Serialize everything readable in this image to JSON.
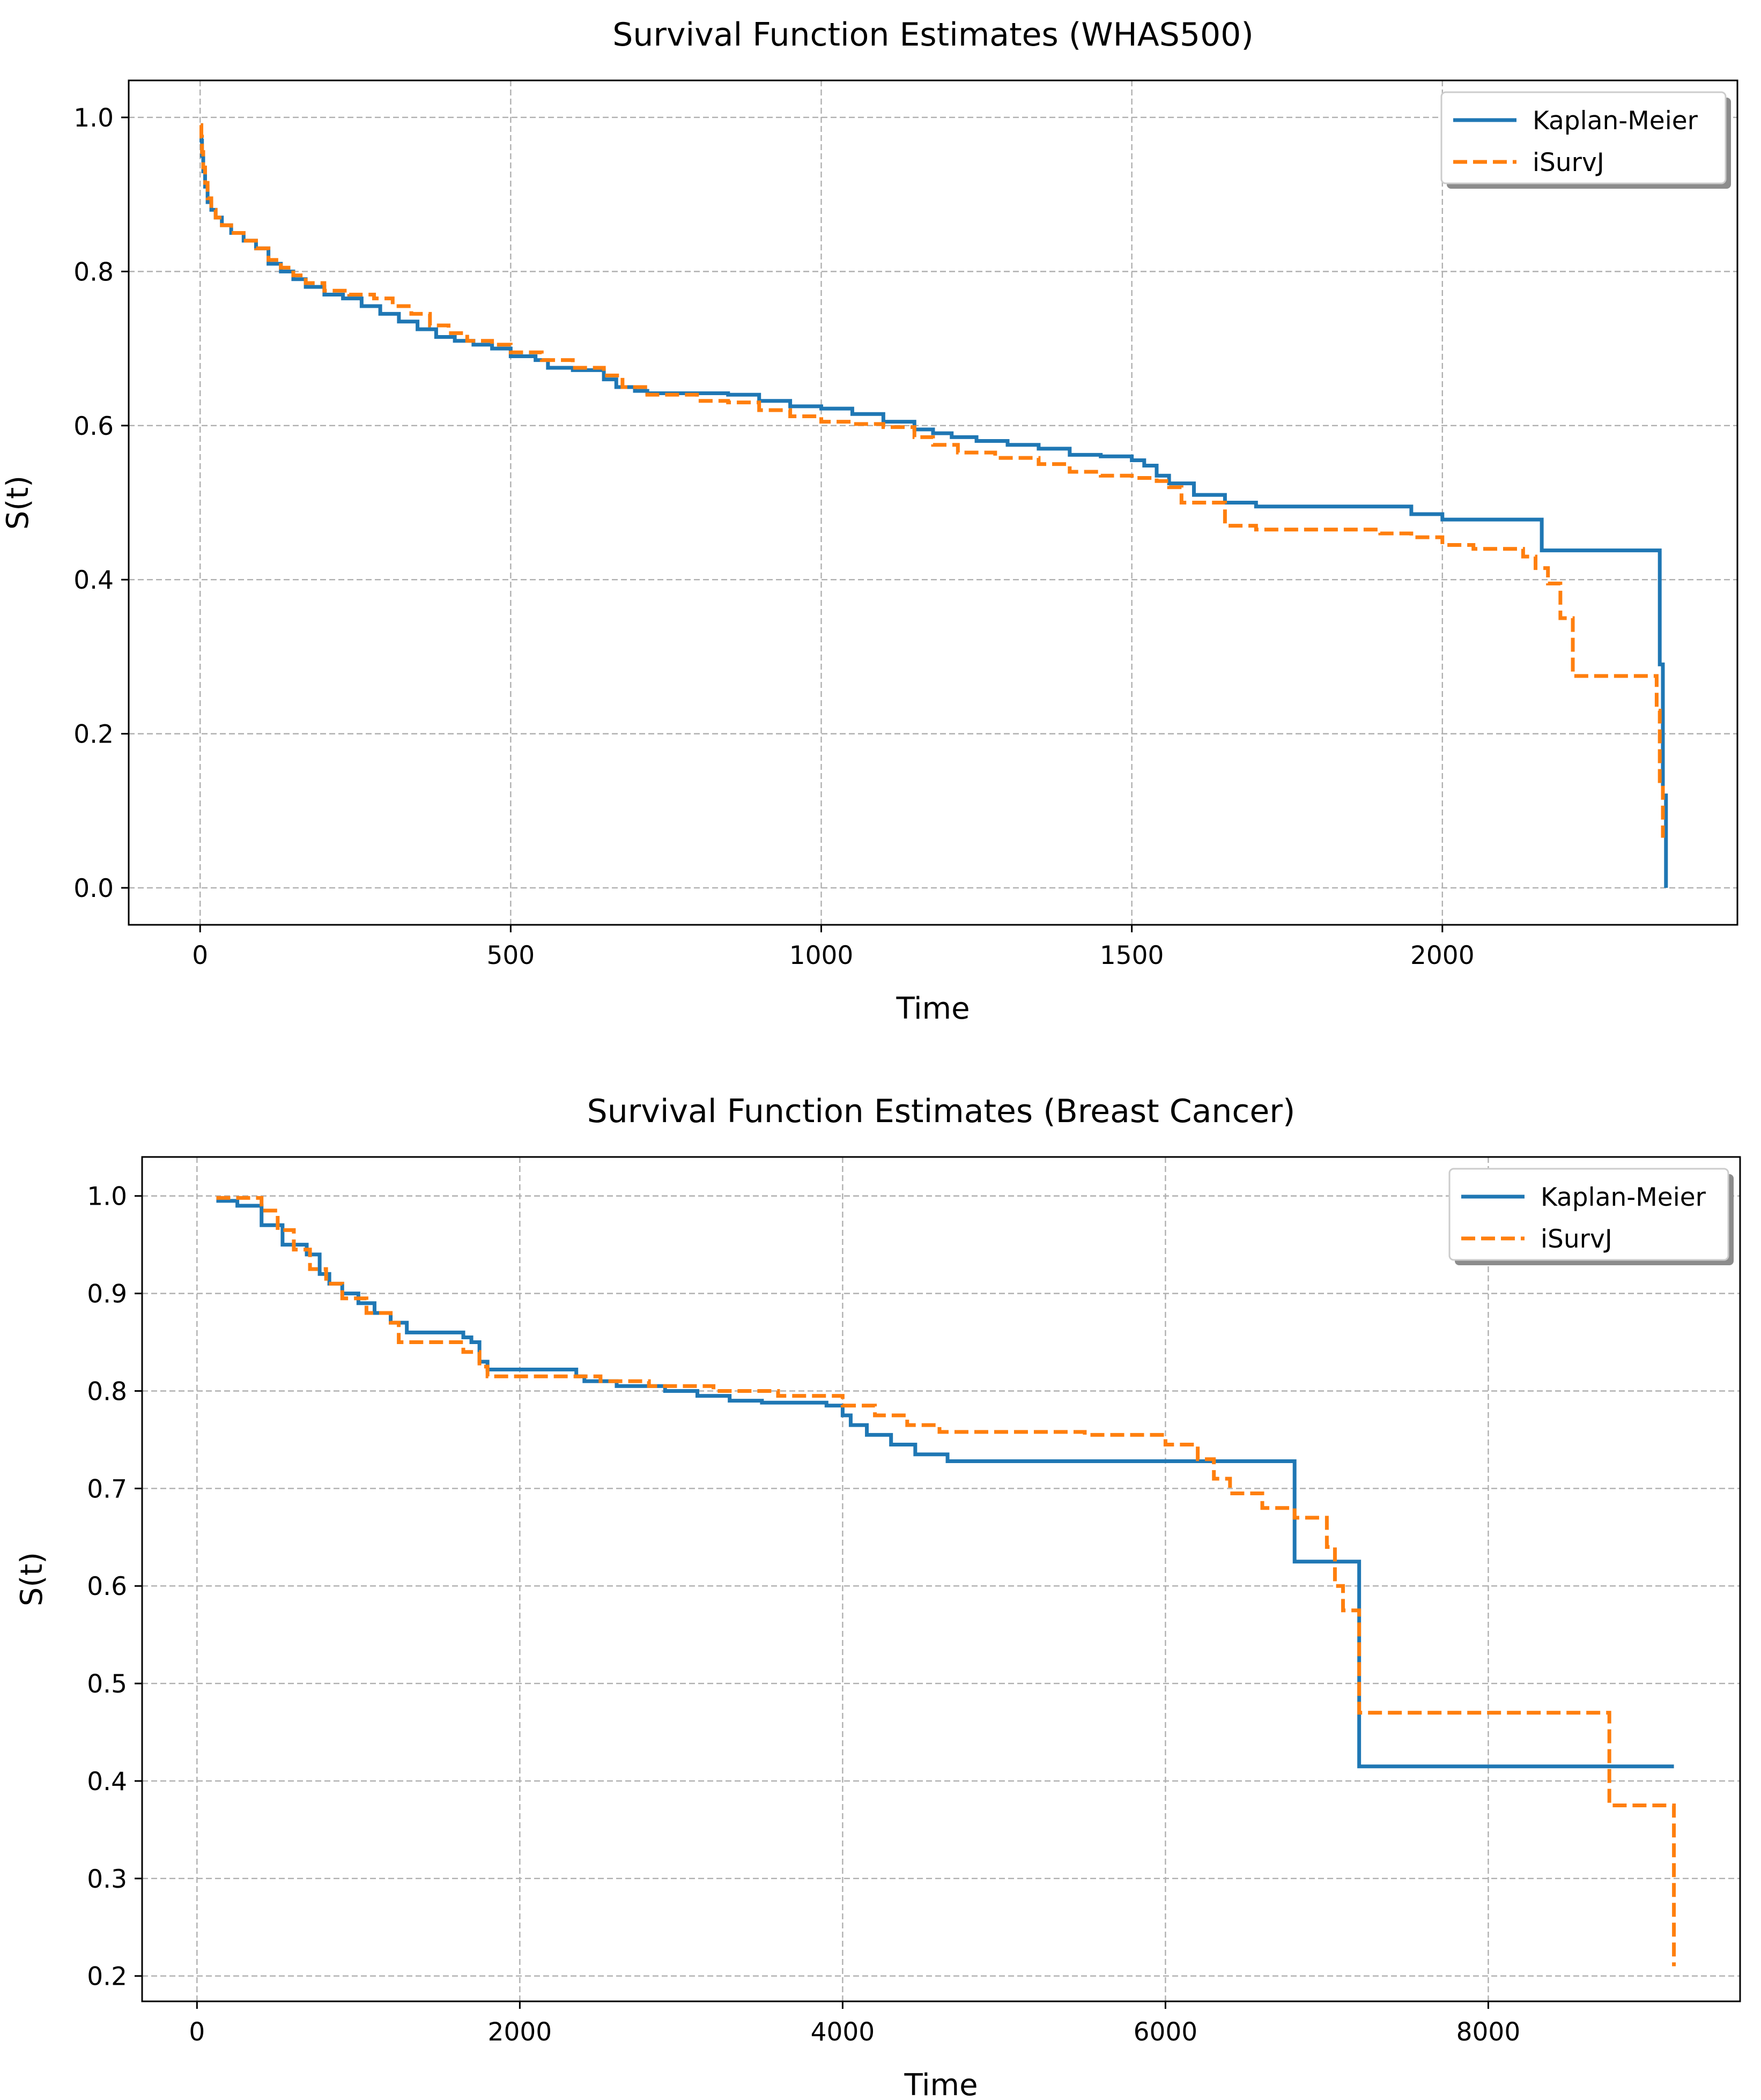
{
  "colors": {
    "kaplan_meier": "#1f77b4",
    "isurvj": "#ff7f0e",
    "grid": "#b0b0b0",
    "axes": "#000000",
    "text": "#000000"
  },
  "chart_data": [
    {
      "type": "line",
      "title": "Survival Function Estimates (WHAS500)",
      "xlabel": "Time",
      "ylabel": "S(t)",
      "xlim": [
        -115,
        2475
      ],
      "ylim": [
        -0.048,
        1.048
      ],
      "xticks": [
        0,
        500,
        1000,
        1500,
        2000
      ],
      "yticks": [
        0.0,
        0.2,
        0.4,
        0.6,
        0.8,
        1.0
      ],
      "xtick_labels": [
        "0",
        "500",
        "1000",
        "1500",
        "2000"
      ],
      "ytick_labels": [
        "0.0",
        "0.2",
        "0.4",
        "0.6",
        "0.8",
        "1.0"
      ],
      "grid": true,
      "step": true,
      "legend": {
        "position": "upper-right",
        "entries": [
          "Kaplan-Meier",
          "iSurvJ"
        ]
      },
      "series": [
        {
          "name": "Kaplan-Meier",
          "style": "solid",
          "color": "#1f77b4",
          "x": [
            1,
            2,
            3,
            5,
            8,
            12,
            18,
            25,
            35,
            50,
            70,
            90,
            110,
            130,
            150,
            170,
            200,
            230,
            260,
            290,
            320,
            350,
            380,
            410,
            440,
            470,
            500,
            540,
            560,
            600,
            650,
            670,
            700,
            720,
            800,
            850,
            900,
            950,
            1000,
            1050,
            1100,
            1150,
            1180,
            1210,
            1250,
            1300,
            1350,
            1400,
            1450,
            1500,
            1520,
            1540,
            1560,
            1600,
            1650,
            1700,
            1800,
            1900,
            1950,
            2000,
            2100,
            2160,
            2200,
            2350,
            2355,
            2360
          ],
          "y": [
            0.99,
            0.97,
            0.95,
            0.93,
            0.91,
            0.89,
            0.88,
            0.87,
            0.86,
            0.85,
            0.84,
            0.83,
            0.81,
            0.8,
            0.79,
            0.78,
            0.77,
            0.765,
            0.755,
            0.745,
            0.735,
            0.725,
            0.715,
            0.71,
            0.705,
            0.7,
            0.69,
            0.685,
            0.675,
            0.672,
            0.66,
            0.65,
            0.645,
            0.642,
            0.642,
            0.64,
            0.632,
            0.625,
            0.622,
            0.615,
            0.605,
            0.595,
            0.59,
            0.585,
            0.58,
            0.575,
            0.57,
            0.562,
            0.56,
            0.555,
            0.548,
            0.535,
            0.525,
            0.51,
            0.5,
            0.495,
            0.495,
            0.495,
            0.485,
            0.478,
            0.478,
            0.438,
            0.438,
            0.29,
            0.12,
            0.0
          ]
        },
        {
          "name": "iSurvJ",
          "style": "dashed",
          "color": "#ff7f0e",
          "x": [
            1,
            2,
            3,
            5,
            8,
            12,
            18,
            25,
            35,
            50,
            70,
            90,
            110,
            130,
            150,
            170,
            200,
            240,
            280,
            310,
            340,
            370,
            400,
            430,
            470,
            500,
            550,
            600,
            650,
            680,
            720,
            800,
            850,
            900,
            950,
            1000,
            1050,
            1100,
            1150,
            1180,
            1220,
            1280,
            1350,
            1400,
            1450,
            1500,
            1540,
            1560,
            1580,
            1650,
            1700,
            1800,
            1900,
            1950,
            2000,
            2050,
            2100,
            2130,
            2150,
            2170,
            2190,
            2210,
            2340,
            2345,
            2350,
            2355
          ],
          "y": [
            0.99,
            0.975,
            0.955,
            0.935,
            0.915,
            0.895,
            0.88,
            0.87,
            0.86,
            0.85,
            0.84,
            0.83,
            0.815,
            0.805,
            0.795,
            0.785,
            0.775,
            0.77,
            0.765,
            0.755,
            0.745,
            0.73,
            0.72,
            0.71,
            0.705,
            0.695,
            0.685,
            0.675,
            0.665,
            0.65,
            0.64,
            0.632,
            0.63,
            0.62,
            0.612,
            0.605,
            0.602,
            0.598,
            0.585,
            0.575,
            0.565,
            0.558,
            0.55,
            0.54,
            0.535,
            0.532,
            0.528,
            0.52,
            0.5,
            0.47,
            0.465,
            0.465,
            0.46,
            0.455,
            0.445,
            0.44,
            0.44,
            0.43,
            0.415,
            0.395,
            0.35,
            0.275,
            0.275,
            0.23,
            0.13,
            0.065
          ]
        }
      ]
    },
    {
      "type": "line",
      "title": "Survival Function Estimates (Breast Cancer)",
      "xlabel": "Time",
      "ylabel": "S(t)",
      "xlim": [
        -340,
        9560
      ],
      "ylim": [
        0.174,
        1.04
      ],
      "xticks": [
        0,
        2000,
        4000,
        6000,
        8000
      ],
      "yticks": [
        0.2,
        0.3,
        0.4,
        0.5,
        0.6,
        0.7,
        0.8,
        0.9,
        1.0
      ],
      "xtick_labels": [
        "0",
        "2000",
        "4000",
        "6000",
        "8000"
      ],
      "ytick_labels": [
        "0.2",
        "0.3",
        "0.4",
        "0.5",
        "0.6",
        "0.7",
        "0.8",
        "0.9",
        "1.0"
      ],
      "grid": true,
      "step": true,
      "legend": {
        "position": "upper-right",
        "entries": [
          "Kaplan-Meier",
          "iSurvJ"
        ]
      },
      "series": [
        {
          "name": "Kaplan-Meier",
          "style": "solid",
          "color": "#1f77b4",
          "x": [
            120,
            250,
            400,
            530,
            680,
            760,
            820,
            900,
            1000,
            1100,
            1200,
            1300,
            1650,
            1700,
            1750,
            1800,
            2350,
            2400,
            2600,
            2900,
            3100,
            3300,
            3500,
            3900,
            4000,
            4050,
            4150,
            4300,
            4450,
            4650,
            5000,
            6000,
            6800,
            7000,
            7200,
            9150
          ],
          "y": [
            0.995,
            0.99,
            0.97,
            0.95,
            0.94,
            0.92,
            0.91,
            0.9,
            0.89,
            0.88,
            0.87,
            0.86,
            0.855,
            0.85,
            0.83,
            0.822,
            0.815,
            0.81,
            0.805,
            0.8,
            0.795,
            0.79,
            0.788,
            0.785,
            0.775,
            0.765,
            0.755,
            0.745,
            0.735,
            0.728,
            0.728,
            0.728,
            0.625,
            0.625,
            0.415,
            0.415
          ]
        },
        {
          "name": "iSurvJ",
          "style": "dashed",
          "color": "#ff7f0e",
          "x": [
            120,
            400,
            500,
            600,
            700,
            800,
            900,
            1050,
            1200,
            1250,
            1650,
            1750,
            1800,
            2500,
            2800,
            3200,
            3600,
            4000,
            4200,
            4400,
            4600,
            5500,
            6000,
            6200,
            6300,
            6400,
            6600,
            6800,
            7000,
            7050,
            7100,
            7200,
            8700,
            8750,
            9150
          ],
          "y": [
            0.998,
            0.985,
            0.965,
            0.945,
            0.925,
            0.91,
            0.895,
            0.88,
            0.87,
            0.85,
            0.84,
            0.825,
            0.815,
            0.81,
            0.805,
            0.8,
            0.795,
            0.785,
            0.775,
            0.765,
            0.758,
            0.755,
            0.745,
            0.73,
            0.71,
            0.695,
            0.68,
            0.67,
            0.64,
            0.6,
            0.575,
            0.47,
            0.47,
            0.375,
            0.21
          ]
        }
      ]
    }
  ]
}
